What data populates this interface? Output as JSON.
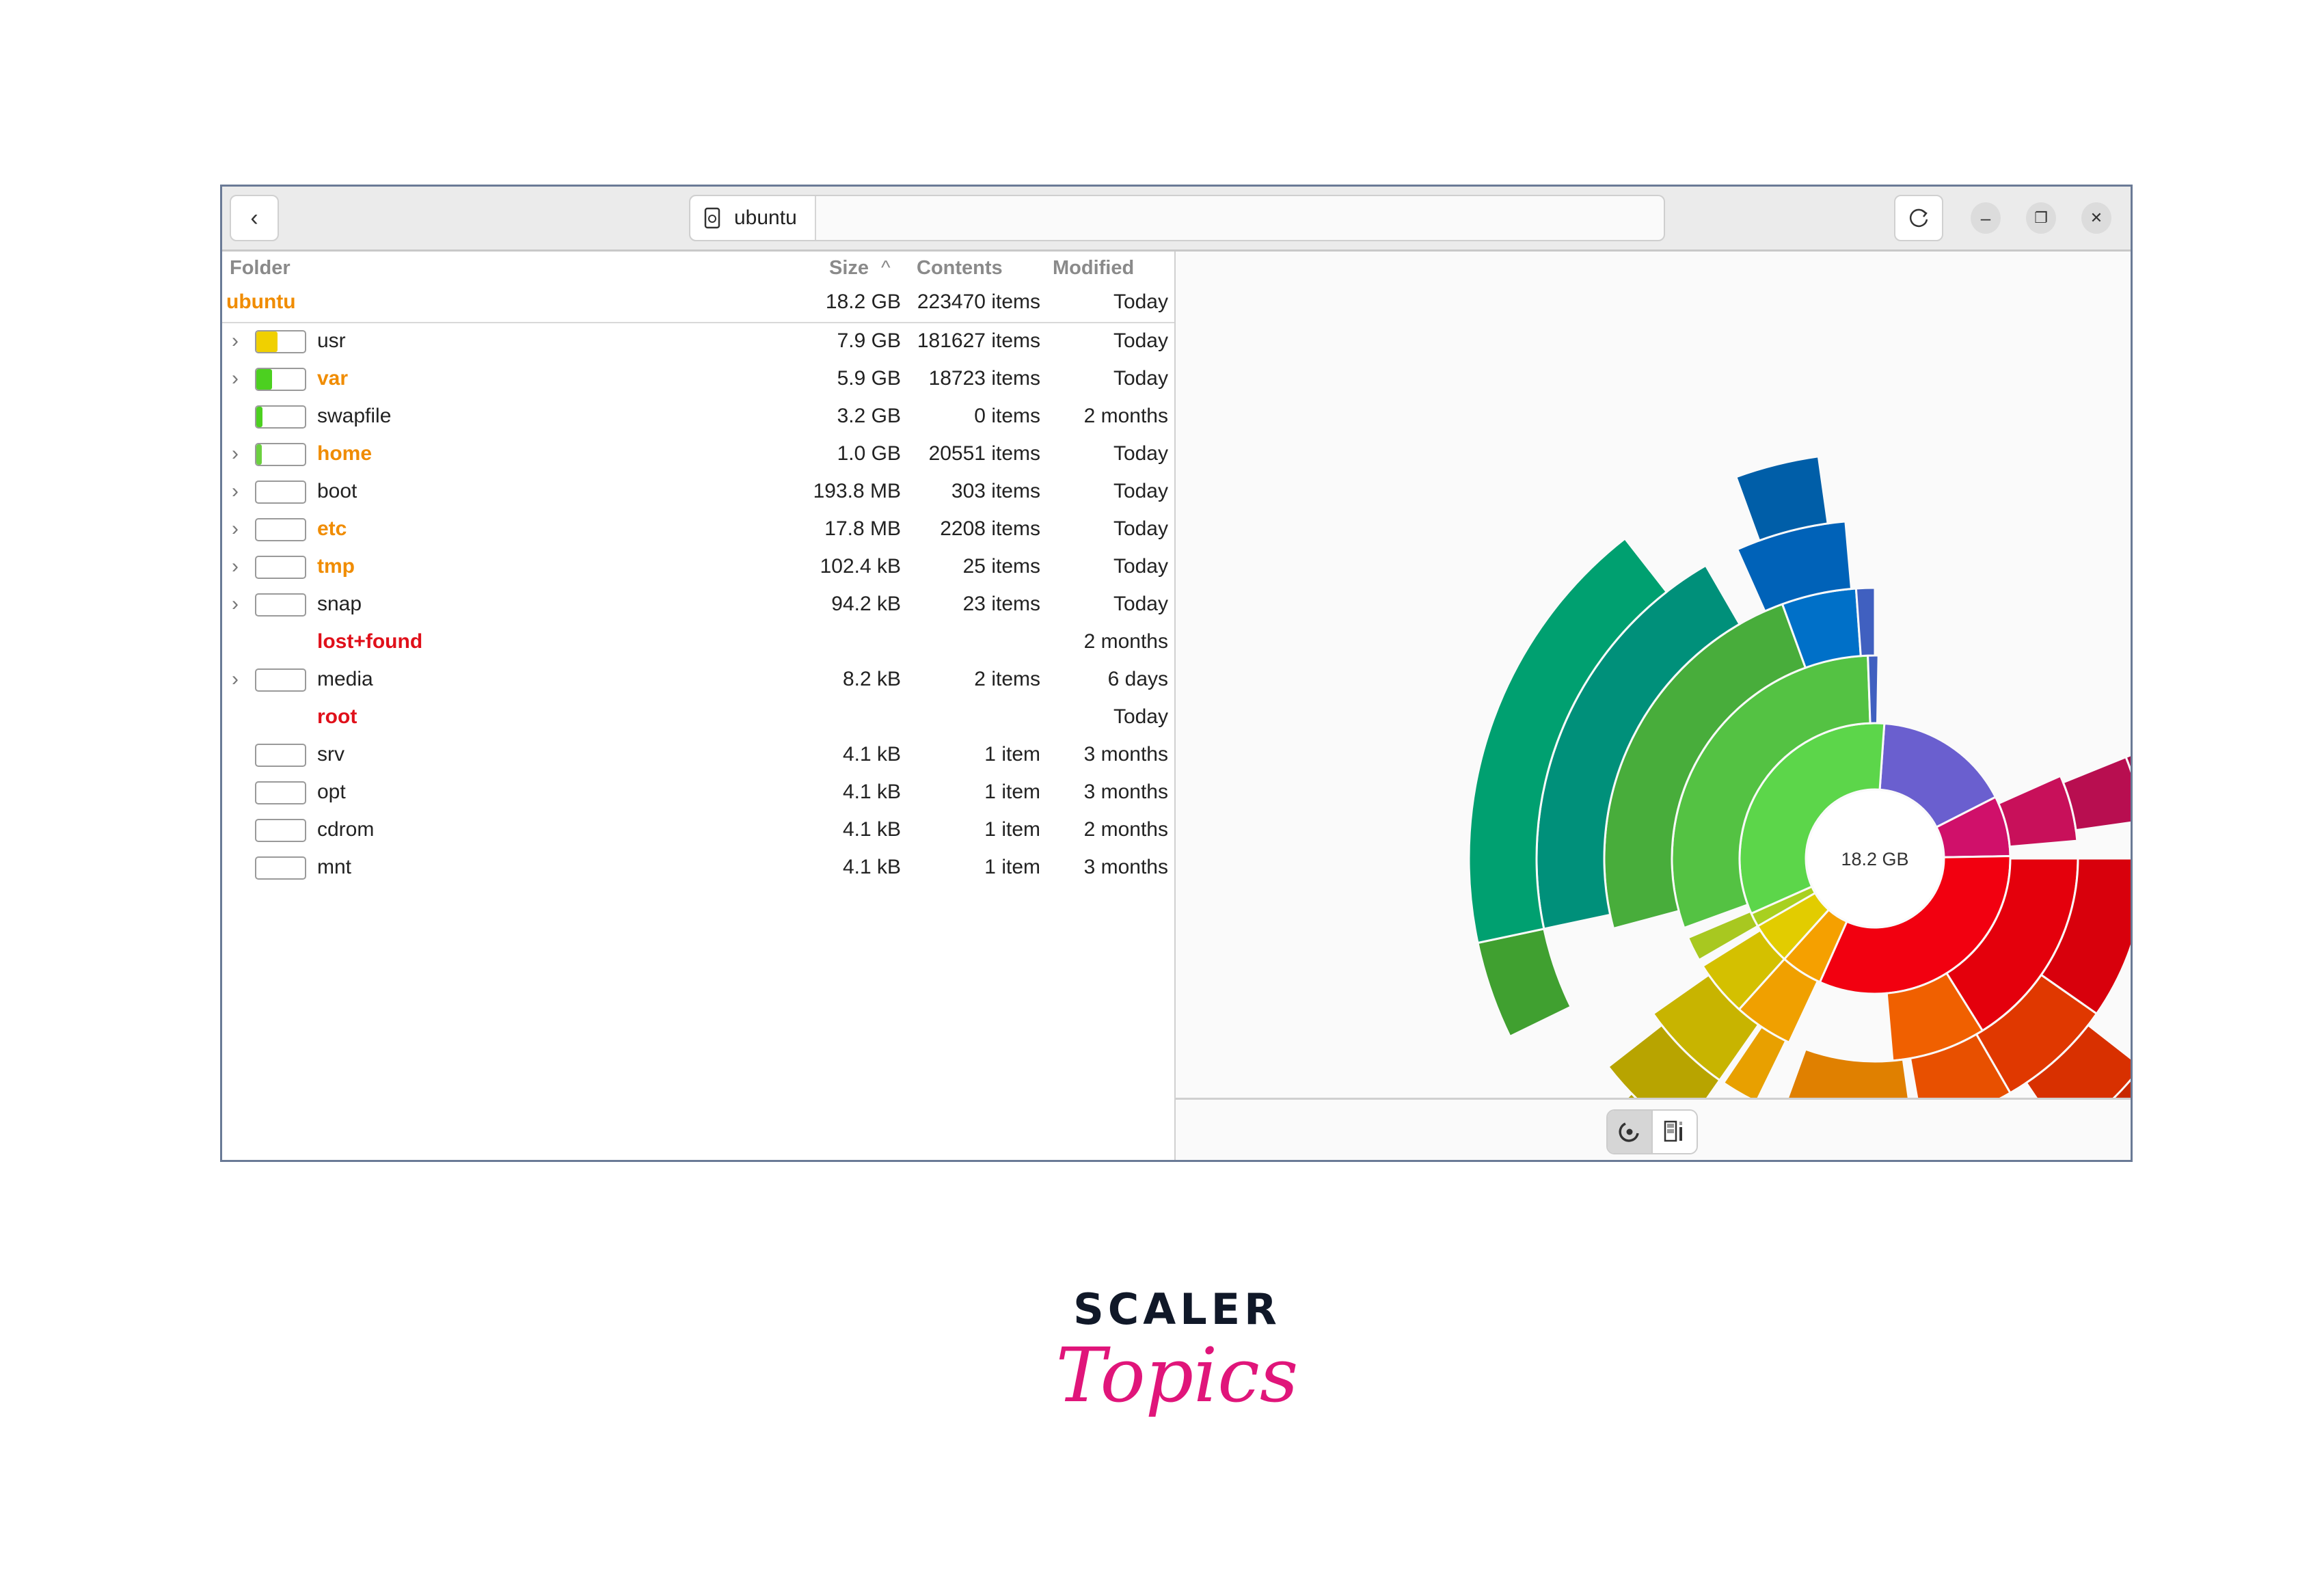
{
  "window": {
    "location": "ubuntu",
    "location_icon": "disk-icon",
    "back_icon": "chevron-left-icon",
    "refresh_icon": "refresh-icon",
    "minimize_label": "–",
    "maximize_label": "❐",
    "close_label": "✕"
  },
  "table": {
    "headers": {
      "folder": "Folder",
      "size": "Size",
      "sort_icon": "^",
      "contents": "Contents",
      "modified": "Modified"
    },
    "root": {
      "name": "ubuntu",
      "size": "18.2 GB",
      "contents": "223470 items",
      "modified": "Today",
      "color": "#f08c00"
    },
    "rows": [
      {
        "name": "usr",
        "size": "7.9 GB",
        "contents": "181627 items",
        "modified": "Today",
        "expandable": true,
        "fill_pct": 43,
        "bar_color": "#f0d000",
        "color": "#222222"
      },
      {
        "name": "var",
        "size": "5.9 GB",
        "contents": "18723 items",
        "modified": "Today",
        "expandable": true,
        "fill_pct": 32,
        "bar_color": "#4cd020",
        "color": "#f08c00"
      },
      {
        "name": "swapfile",
        "size": "3.2 GB",
        "contents": "0 items",
        "modified": "2 months",
        "expandable": false,
        "fill_pct": 12,
        "bar_color": "#4cd020",
        "color": "#222222"
      },
      {
        "name": "home",
        "size": "1.0 GB",
        "contents": "20551 items",
        "modified": "Today",
        "expandable": true,
        "fill_pct": 3,
        "bar_color": "#6cd040",
        "color": "#f08c00"
      },
      {
        "name": "boot",
        "size": "193.8 MB",
        "contents": "303 items",
        "modified": "Today",
        "expandable": true,
        "fill_pct": 0,
        "bar_color": "#cccccc",
        "color": "#222222"
      },
      {
        "name": "etc",
        "size": "17.8 MB",
        "contents": "2208 items",
        "modified": "Today",
        "expandable": true,
        "fill_pct": 0,
        "bar_color": "#cccccc",
        "color": "#f08c00"
      },
      {
        "name": "tmp",
        "size": "102.4 kB",
        "contents": "25 items",
        "modified": "Today",
        "expandable": true,
        "fill_pct": 0,
        "bar_color": "#cccccc",
        "color": "#f08c00"
      },
      {
        "name": "snap",
        "size": "94.2 kB",
        "contents": "23 items",
        "modified": "Today",
        "expandable": true,
        "fill_pct": 0,
        "bar_color": "#cccccc",
        "color": "#222222"
      },
      {
        "name": "lost+found",
        "size": "",
        "contents": "",
        "modified": "2 months",
        "expandable": false,
        "nobar": true,
        "color": "#e0101a"
      },
      {
        "name": "media",
        "size": "8.2 kB",
        "contents": "2 items",
        "modified": "6 days",
        "expandable": true,
        "fill_pct": 0,
        "bar_color": "#cccccc",
        "color": "#222222"
      },
      {
        "name": "root",
        "size": "",
        "contents": "",
        "modified": "Today",
        "expandable": false,
        "nobar": true,
        "color": "#e0101a"
      },
      {
        "name": "srv",
        "size": "4.1 kB",
        "contents": "1 item",
        "modified": "3 months",
        "expandable": false,
        "fill_pct": 0,
        "bar_color": "#cccccc",
        "color": "#222222"
      },
      {
        "name": "opt",
        "size": "4.1 kB",
        "contents": "1 item",
        "modified": "3 months",
        "expandable": false,
        "fill_pct": 0,
        "bar_color": "#cccccc",
        "color": "#222222"
      },
      {
        "name": "cdrom",
        "size": "4.1 kB",
        "contents": "1 item",
        "modified": "2 months",
        "expandable": false,
        "fill_pct": 0,
        "bar_color": "#cccccc",
        "color": "#222222"
      },
      {
        "name": "mnt",
        "size": "4.1 kB",
        "contents": "1 item",
        "modified": "3 months",
        "expandable": false,
        "fill_pct": 0,
        "bar_color": "#cccccc",
        "color": "#222222"
      }
    ]
  },
  "chart": {
    "center_label": "18.2 GB",
    "view_toggle": [
      "rings-chart-icon",
      "treemap-chart-icon"
    ],
    "segments": [
      {
        "ring": 1,
        "start_deg": 4,
        "end_deg": 63,
        "color": "#6a5fcf"
      },
      {
        "ring": 1,
        "start_deg": 63,
        "end_deg": 89,
        "color": "#d0106a"
      },
      {
        "ring": 1,
        "start_deg": 89,
        "end_deg": 204,
        "color": "#f20010"
      },
      {
        "ring": 1,
        "start_deg": 204,
        "end_deg": 222,
        "color": "#f5a000"
      },
      {
        "ring": 1,
        "start_deg": 222,
        "end_deg": 240,
        "color": "#e2cc00"
      },
      {
        "ring": 1,
        "start_deg": 240,
        "end_deg": 246,
        "color": "#a8d020"
      },
      {
        "ring": 1,
        "start_deg": 246,
        "end_deg": 364,
        "color": "#5cd64a"
      },
      {
        "ring": 2,
        "start_deg": 250,
        "end_deg": 358,
        "color": "#54c243"
      },
      {
        "ring": 2,
        "start_deg": 358,
        "end_deg": 361,
        "color": "#4060c0"
      },
      {
        "ring": 2,
        "start_deg": 66,
        "end_deg": 85,
        "color": "#c8105a"
      },
      {
        "ring": 2,
        "start_deg": 90,
        "end_deg": 148,
        "color": "#e4000c"
      },
      {
        "ring": 2,
        "start_deg": 148,
        "end_deg": 175,
        "color": "#f06000"
      },
      {
        "ring": 2,
        "start_deg": 205,
        "end_deg": 222,
        "color": "#f0a000"
      },
      {
        "ring": 2,
        "start_deg": 222,
        "end_deg": 238,
        "color": "#d4c000"
      },
      {
        "ring": 2,
        "start_deg": 240,
        "end_deg": 247,
        "color": "#a8c820"
      },
      {
        "ring": 3,
        "start_deg": 255,
        "end_deg": 340,
        "color": "#48ad3b"
      },
      {
        "ring": 3,
        "start_deg": 340,
        "end_deg": 356,
        "color": "#0070c8"
      },
      {
        "ring": 3,
        "start_deg": 356,
        "end_deg": 360,
        "color": "#4060c0"
      },
      {
        "ring": 3,
        "start_deg": 68,
        "end_deg": 82,
        "color": "#b80e50"
      },
      {
        "ring": 3,
        "start_deg": 90,
        "end_deg": 125,
        "color": "#d8000c"
      },
      {
        "ring": 3,
        "start_deg": 125,
        "end_deg": 150,
        "color": "#e03800"
      },
      {
        "ring": 3,
        "start_deg": 150,
        "end_deg": 170,
        "color": "#e85000"
      },
      {
        "ring": 3,
        "start_deg": 172,
        "end_deg": 200,
        "color": "#e08000"
      },
      {
        "ring": 3,
        "start_deg": 206,
        "end_deg": 214,
        "color": "#e8a000"
      },
      {
        "ring": 3,
        "start_deg": 215,
        "end_deg": 235,
        "color": "#c8b400"
      },
      {
        "ring": 4,
        "start_deg": 258,
        "end_deg": 330,
        "color": "#00907a"
      },
      {
        "ring": 4,
        "start_deg": 336,
        "end_deg": 355,
        "color": "#0062b8"
      },
      {
        "ring": 4,
        "start_deg": 68,
        "end_deg": 80,
        "color": "#a80c48"
      },
      {
        "ring": 4,
        "start_deg": 92,
        "end_deg": 98,
        "color": "#d8000c"
      },
      {
        "ring": 4,
        "start_deg": 128,
        "end_deg": 146,
        "color": "#d83000"
      },
      {
        "ring": 4,
        "start_deg": 174,
        "end_deg": 196,
        "color": "#d88000"
      },
      {
        "ring": 4,
        "start_deg": 215,
        "end_deg": 232,
        "color": "#b8a400"
      },
      {
        "ring": 5,
        "start_deg": 244,
        "end_deg": 258,
        "color": "#40a030"
      },
      {
        "ring": 5,
        "start_deg": 258,
        "end_deg": 322,
        "color": "#00a070"
      },
      {
        "ring": 5,
        "start_deg": 340,
        "end_deg": 352,
        "color": "#005ea8"
      },
      {
        "ring": 5,
        "start_deg": 67,
        "end_deg": 76,
        "color": "#a00840"
      },
      {
        "ring": 5,
        "start_deg": 130,
        "end_deg": 143,
        "color": "#c82800"
      },
      {
        "ring": 5,
        "start_deg": 178,
        "end_deg": 186,
        "color": "#c87800"
      },
      {
        "ring": 5,
        "start_deg": 216,
        "end_deg": 226,
        "color": "#b0a000"
      }
    ]
  },
  "branding": {
    "line1": "SCALER",
    "line2": "Topics"
  }
}
